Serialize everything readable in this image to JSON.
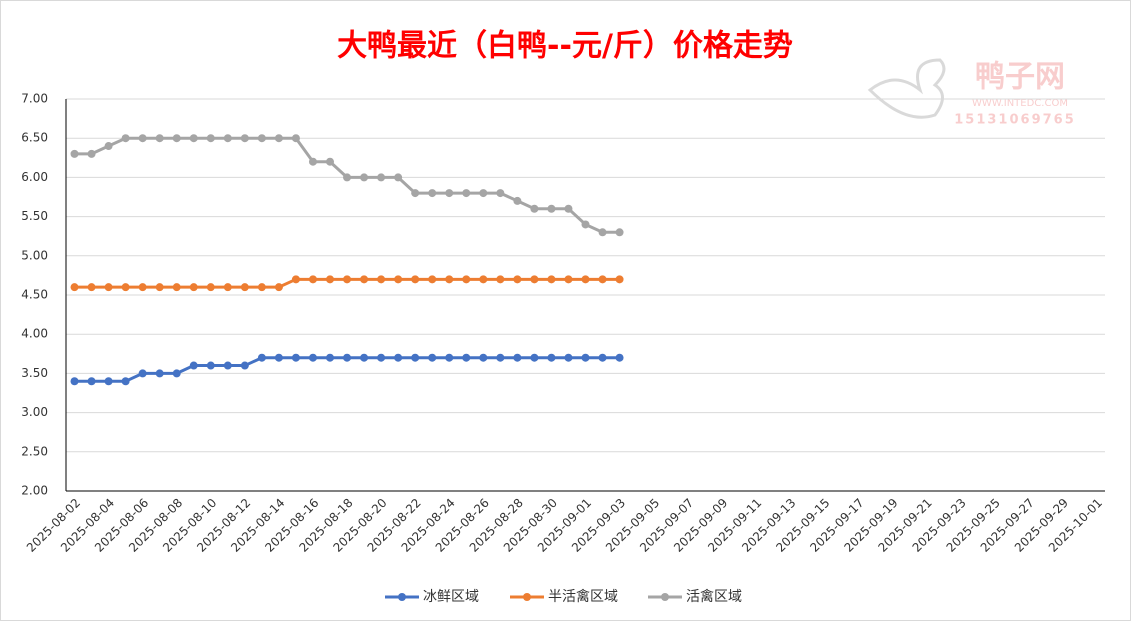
{
  "chart_data": {
    "type": "line",
    "title": "大鸭最近（白鸭--元/斤）价格走势",
    "watermark": {
      "name": "鸭子网",
      "url": "WWW.INTEDC.COM",
      "phone": "15131069765"
    },
    "categories": [
      "2025-08-02",
      null,
      "2025-08-04",
      null,
      "2025-08-06",
      null,
      "2025-08-08",
      null,
      "2025-08-10",
      null,
      "2025-08-12",
      null,
      "2025-08-14",
      null,
      "2025-08-16",
      null,
      "2025-08-18",
      null,
      "2025-08-20",
      null,
      "2025-08-22",
      null,
      "2025-08-24",
      null,
      "2025-08-26",
      null,
      "2025-08-28",
      null,
      "2025-08-30",
      null,
      "2025-09-01",
      null,
      "2025-09-03",
      null,
      "2025-09-05",
      null,
      "2025-09-07",
      null,
      "2025-09-09",
      null,
      "2025-09-11",
      null,
      "2025-09-13",
      null,
      "2025-09-15",
      null,
      "2025-09-17",
      null,
      "2025-09-19",
      null,
      "2025-09-21",
      null,
      "2025-09-23",
      null,
      "2025-09-25",
      null,
      "2025-09-27",
      null,
      "2025-09-29",
      null,
      "2025-10-01"
    ],
    "series": [
      {
        "name": "冰鲜区域",
        "color": "#4472c4",
        "values": [
          3.4,
          3.4,
          3.4,
          3.4,
          3.5,
          3.5,
          3.5,
          3.6,
          3.6,
          3.6,
          3.6,
          3.7,
          3.7,
          3.7,
          3.7,
          3.7,
          3.7,
          3.7,
          3.7,
          3.7,
          3.7,
          3.7,
          3.7,
          3.7,
          3.7,
          3.7,
          3.7,
          3.7,
          3.7,
          3.7,
          3.7,
          3.7,
          3.7,
          null,
          null,
          null,
          null,
          null,
          null,
          null,
          null,
          null,
          null,
          null,
          null,
          null,
          null,
          null,
          null,
          null,
          null,
          null,
          null,
          null,
          null,
          null,
          null,
          null,
          null,
          null,
          null
        ]
      },
      {
        "name": "半活禽区域",
        "color": "#ed7d31",
        "values": [
          4.6,
          4.6,
          4.6,
          4.6,
          4.6,
          4.6,
          4.6,
          4.6,
          4.6,
          4.6,
          4.6,
          4.6,
          4.6,
          4.7,
          4.7,
          4.7,
          4.7,
          4.7,
          4.7,
          4.7,
          4.7,
          4.7,
          4.7,
          4.7,
          4.7,
          4.7,
          4.7,
          4.7,
          4.7,
          4.7,
          4.7,
          4.7,
          4.7,
          null,
          null,
          null,
          null,
          null,
          null,
          null,
          null,
          null,
          null,
          null,
          null,
          null,
          null,
          null,
          null,
          null,
          null,
          null,
          null,
          null,
          null,
          null,
          null,
          null,
          null,
          null,
          null
        ]
      },
      {
        "name": "活禽区域",
        "color": "#a5a5a5",
        "values": [
          6.3,
          6.3,
          6.4,
          6.5,
          6.5,
          6.5,
          6.5,
          6.5,
          6.5,
          6.5,
          6.5,
          6.5,
          6.5,
          6.5,
          6.2,
          6.2,
          6.0,
          6.0,
          6.0,
          6.0,
          5.8,
          5.8,
          5.8,
          5.8,
          5.8,
          5.8,
          5.7,
          5.6,
          5.6,
          5.6,
          5.4,
          5.3,
          5.3,
          null,
          null,
          null,
          null,
          null,
          null,
          null,
          null,
          null,
          null,
          null,
          null,
          null,
          null,
          null,
          null,
          null,
          null,
          null,
          null,
          null,
          null,
          null,
          null,
          null,
          null,
          null,
          null
        ]
      }
    ],
    "ylim": [
      2,
      7
    ],
    "yticks": [
      {
        "value": 2,
        "label": "2.00"
      },
      {
        "value": 2.5,
        "label": "2.50"
      },
      {
        "value": 3,
        "label": "3.00"
      },
      {
        "value": 3.5,
        "label": "3.50"
      },
      {
        "value": 4,
        "label": "4.00"
      },
      {
        "value": 4.5,
        "label": "4.50"
      },
      {
        "value": 5,
        "label": "5.00"
      },
      {
        "value": 5.5,
        "label": "5.50"
      },
      {
        "value": 6,
        "label": "6.00"
      },
      {
        "value": 6.5,
        "label": "6.50"
      },
      {
        "value": 7,
        "label": "7.00"
      }
    ],
    "grid": true,
    "legend": "bottom"
  }
}
